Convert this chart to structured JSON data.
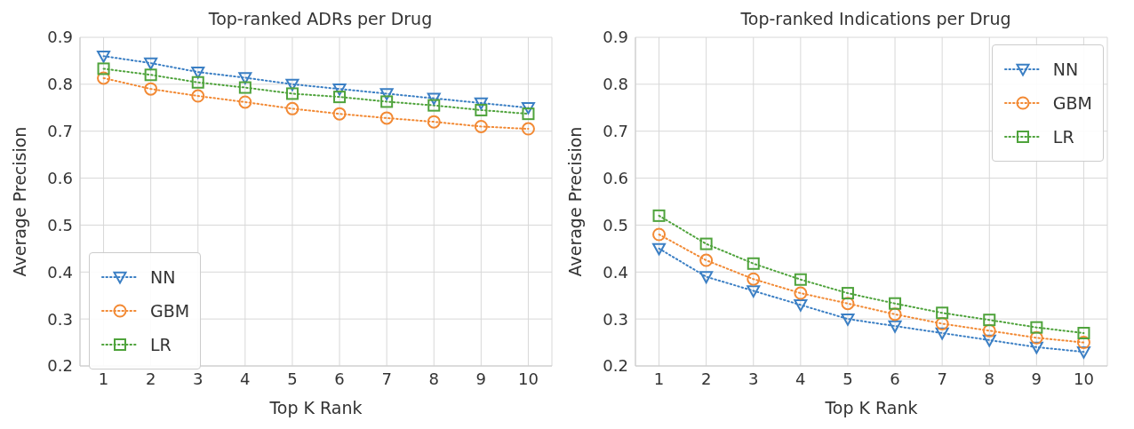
{
  "chart_data": [
    {
      "type": "line",
      "title": "Top-ranked ADRs per Drug",
      "xlabel": "Top K Rank",
      "ylabel": "Average Precision",
      "x": [
        1,
        2,
        3,
        4,
        5,
        6,
        7,
        8,
        9,
        10
      ],
      "xlim": [
        0.5,
        10.5
      ],
      "xticks": [
        1,
        2,
        3,
        4,
        5,
        6,
        7,
        8,
        9,
        10
      ],
      "ylim": [
        0.2,
        0.9
      ],
      "yticks": [
        0.2,
        0.3,
        0.4,
        0.5,
        0.6,
        0.7,
        0.8,
        0.9
      ],
      "grid": true,
      "legend": "bottom left",
      "line_style": "dotted",
      "series": [
        {
          "name": "NN",
          "color": "#3b7fc4",
          "marker": "triangle",
          "values": [
            0.86,
            0.845,
            0.826,
            0.814,
            0.8,
            0.79,
            0.78,
            0.77,
            0.76,
            0.75
          ]
        },
        {
          "name": "GBM",
          "color": "#f28a35",
          "marker": "circle",
          "values": [
            0.813,
            0.79,
            0.775,
            0.762,
            0.748,
            0.737,
            0.728,
            0.72,
            0.71,
            0.705
          ]
        },
        {
          "name": "LR",
          "color": "#4fa33c",
          "marker": "square",
          "values": [
            0.833,
            0.82,
            0.804,
            0.793,
            0.78,
            0.773,
            0.763,
            0.755,
            0.745,
            0.737
          ]
        }
      ]
    },
    {
      "type": "line",
      "title": "Top-ranked Indications per Drug",
      "xlabel": "Top K Rank",
      "ylabel": "Average Precision",
      "x": [
        1,
        2,
        3,
        4,
        5,
        6,
        7,
        8,
        9,
        10
      ],
      "xlim": [
        0.5,
        10.5
      ],
      "xticks": [
        1,
        2,
        3,
        4,
        5,
        6,
        7,
        8,
        9,
        10
      ],
      "ylim": [
        0.2,
        0.9
      ],
      "yticks": [
        0.2,
        0.3,
        0.4,
        0.5,
        0.6,
        0.7,
        0.8,
        0.9
      ],
      "grid": true,
      "legend": "top right",
      "line_style": "dotted",
      "series": [
        {
          "name": "NN",
          "color": "#3b7fc4",
          "marker": "triangle",
          "values": [
            0.45,
            0.39,
            0.36,
            0.33,
            0.3,
            0.285,
            0.27,
            0.255,
            0.24,
            0.23
          ]
        },
        {
          "name": "GBM",
          "color": "#f28a35",
          "marker": "circle",
          "values": [
            0.48,
            0.425,
            0.385,
            0.355,
            0.333,
            0.31,
            0.29,
            0.275,
            0.26,
            0.25
          ]
        },
        {
          "name": "LR",
          "color": "#4fa33c",
          "marker": "square",
          "values": [
            0.52,
            0.46,
            0.418,
            0.384,
            0.355,
            0.333,
            0.313,
            0.298,
            0.282,
            0.27
          ]
        }
      ]
    }
  ]
}
